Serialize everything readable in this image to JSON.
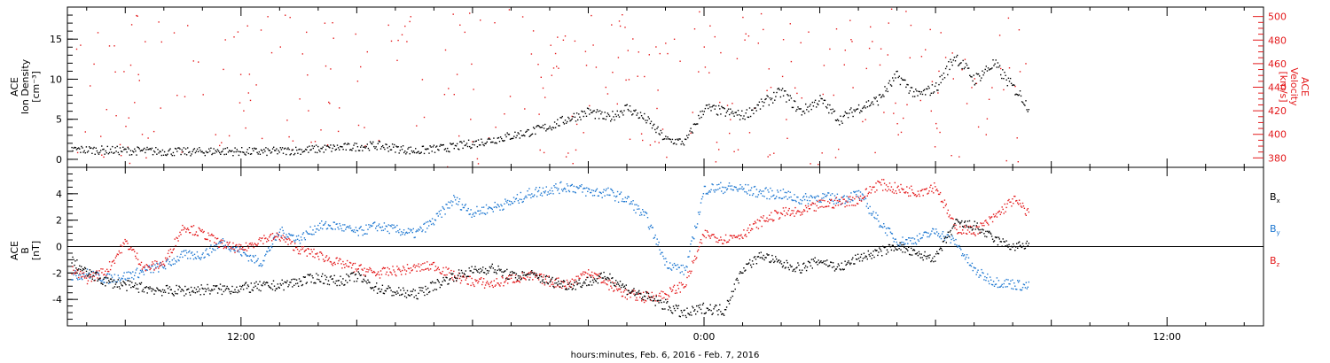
{
  "colors": {
    "black": "#000000",
    "red": "#e41a1c",
    "blue": "#1f78d1",
    "frame": "#000000"
  },
  "footer": {
    "xlabel": "hours:minutes, Feb.  6, 2016 - Feb.  7, 2016"
  },
  "chart_data": [
    {
      "type": "scatter",
      "panel": "top",
      "ylabel_lines": [
        "ACE",
        "Ion Density",
        "[cm⁻³]"
      ],
      "y2label_lines": [
        "ACE",
        "Velocity",
        "[km/s]"
      ],
      "x_tick_labels": [
        "12:00",
        "0:00",
        "12:00"
      ],
      "x_ticks_hours": [
        12,
        24,
        36
      ],
      "xlim_hours": [
        7.5,
        38.5
      ],
      "ylim": [
        -1,
        19
      ],
      "yticks": [
        0,
        5,
        10,
        15
      ],
      "y2lim": [
        372,
        508
      ],
      "y2ticks": [
        380,
        400,
        420,
        440,
        460,
        480,
        500
      ],
      "grid": false,
      "series": [
        {
          "axis": "left",
          "color": "black",
          "x_hours": [
            7.6,
            8.5,
            9.5,
            10.5,
            11.5,
            12.5,
            13.5,
            14.5,
            15.5,
            16.5,
            17.5,
            18.5,
            19.0,
            19.5,
            20.0,
            20.5,
            21.0,
            21.5,
            22.0,
            22.5,
            23.0,
            23.5,
            24.0,
            24.5,
            25.0,
            25.5,
            26.0,
            26.5,
            27.0,
            27.5,
            28.0,
            28.5,
            29.0,
            29.5,
            30.0,
            30.5,
            31.0,
            31.5,
            32.0,
            32.2,
            32.4
          ],
          "values": [
            1.3,
            1.2,
            1.1,
            1.0,
            1.1,
            1.0,
            1.2,
            1.5,
            1.8,
            1.1,
            1.6,
            2.5,
            3.0,
            3.5,
            4.2,
            5.2,
            6.0,
            5.2,
            6.5,
            5.0,
            2.5,
            2.2,
            6.5,
            6.0,
            5.5,
            7.0,
            8.5,
            6.0,
            7.5,
            5.0,
            6.5,
            7.5,
            10.5,
            8.0,
            9.0,
            13.0,
            10.0,
            12.0,
            9.0,
            8.0,
            6.5
          ]
        },
        {
          "axis": "right",
          "color": "red",
          "x_hours": [
            7.6,
            8.0,
            8.5,
            9.0,
            9.5,
            10.0,
            10.5,
            11.0,
            11.5,
            12.0,
            12.5,
            13.0,
            13.5,
            14.0,
            14.5,
            15.0,
            15.5,
            16.0,
            16.5,
            17.0,
            17.5,
            18.0,
            18.5,
            19.0,
            19.5,
            20.0,
            20.5,
            21.0,
            21.5,
            22.0,
            22.5,
            23.0,
            23.5,
            24.0,
            24.5,
            25.0,
            25.5,
            26.0,
            26.5,
            27.0,
            27.5,
            28.0,
            28.5,
            29.0,
            29.5,
            30.0,
            30.5,
            31.0,
            31.5,
            32.0,
            32.4
          ],
          "values": [
            460,
            456,
            452,
            447,
            443,
            440,
            437,
            435,
            432,
            428,
            425,
            432,
            427,
            430,
            428,
            431,
            437,
            443,
            447,
            446,
            448,
            441,
            437,
            433,
            437,
            430,
            425,
            428,
            421,
            420,
            423,
            419,
            412,
            407,
            408,
            414,
            418,
            423,
            413,
            406,
            413,
            408,
            405,
            404,
            400,
            400,
            404,
            401,
            398,
            396,
            400
          ]
        }
      ]
    },
    {
      "type": "scatter",
      "panel": "bottom",
      "ylabel_lines": [
        "ACE",
        "B",
        "[nT]"
      ],
      "legend_position": "right",
      "x_tick_labels": [
        "12:00",
        "0:00",
        "12:00"
      ],
      "x_ticks_hours": [
        12,
        24,
        36
      ],
      "xlim_hours": [
        7.5,
        38.5
      ],
      "ylim": [
        -6,
        6
      ],
      "yticks": [
        -4,
        -2,
        0,
        2,
        4
      ],
      "zero_line": true,
      "grid": false,
      "series": [
        {
          "name": "B",
          "sub": "x",
          "color": "black",
          "x_hours": [
            7.6,
            8.0,
            8.5,
            9.0,
            9.5,
            10.0,
            10.5,
            11.0,
            11.5,
            12.0,
            12.5,
            13.0,
            13.5,
            14.0,
            14.5,
            15.0,
            15.5,
            16.0,
            16.5,
            17.0,
            17.5,
            18.0,
            18.5,
            19.0,
            19.5,
            20.0,
            20.5,
            21.0,
            21.5,
            22.0,
            22.5,
            23.0,
            23.5,
            24.0,
            24.5,
            25.0,
            25.5,
            26.0,
            26.5,
            27.0,
            27.5,
            28.0,
            28.5,
            29.0,
            29.5,
            30.0,
            30.5,
            31.0,
            31.5,
            32.0,
            32.4
          ],
          "values": [
            -1.0,
            -2.0,
            -2.6,
            -2.9,
            -3.1,
            -3.3,
            -3.3,
            -3.2,
            -3.2,
            -3.1,
            -3.0,
            -2.9,
            -2.6,
            -2.3,
            -2.6,
            -2.2,
            -3.1,
            -3.4,
            -3.6,
            -2.9,
            -2.2,
            -1.8,
            -1.6,
            -2.2,
            -2.1,
            -2.6,
            -2.9,
            -2.6,
            -2.2,
            -3.2,
            -3.8,
            -4.4,
            -5.1,
            -4.6,
            -4.8,
            -1.6,
            -0.6,
            -1.3,
            -1.6,
            -1.0,
            -1.6,
            -0.8,
            -0.4,
            0.1,
            -0.6,
            -0.8,
            1.8,
            1.6,
            0.6,
            0.0,
            0.2
          ]
        },
        {
          "name": "B",
          "sub": "y",
          "color": "blue",
          "x_hours": [
            7.6,
            8.0,
            8.5,
            9.0,
            9.5,
            10.0,
            10.5,
            11.0,
            11.5,
            12.0,
            12.5,
            13.0,
            13.5,
            14.0,
            14.5,
            15.0,
            15.5,
            16.0,
            16.5,
            17.0,
            17.5,
            18.0,
            18.5,
            19.0,
            19.5,
            20.0,
            20.5,
            21.0,
            21.5,
            22.0,
            22.5,
            23.0,
            23.5,
            24.0,
            24.5,
            25.0,
            25.5,
            26.0,
            26.5,
            27.0,
            27.5,
            28.0,
            28.5,
            29.0,
            29.5,
            30.0,
            30.5,
            31.0,
            31.5,
            32.0,
            32.4
          ],
          "values": [
            -2.2,
            -2.0,
            -2.4,
            -2.2,
            -1.8,
            -1.4,
            -0.6,
            -0.6,
            0.4,
            -0.4,
            -1.2,
            1.2,
            0.6,
            1.6,
            1.6,
            1.1,
            1.6,
            1.3,
            1.0,
            2.0,
            3.6,
            2.6,
            3.0,
            3.4,
            4.1,
            4.4,
            4.6,
            4.2,
            4.1,
            3.6,
            2.2,
            -1.2,
            -1.8,
            4.4,
            4.5,
            4.4,
            4.1,
            4.0,
            3.6,
            3.8,
            3.6,
            4.0,
            2.0,
            0.4,
            0.6,
            1.2,
            0.4,
            -1.8,
            -2.6,
            -2.8,
            -3.0
          ]
        },
        {
          "name": "B",
          "sub": "z",
          "color": "red",
          "x_hours": [
            7.6,
            8.0,
            8.5,
            9.0,
            9.5,
            10.0,
            10.5,
            11.0,
            11.5,
            12.0,
            12.5,
            13.0,
            13.5,
            14.0,
            14.5,
            15.0,
            15.5,
            16.0,
            16.5,
            17.0,
            17.5,
            18.0,
            18.5,
            19.0,
            19.5,
            20.0,
            20.5,
            21.0,
            21.5,
            22.0,
            22.5,
            23.0,
            23.5,
            24.0,
            24.5,
            25.0,
            25.5,
            26.0,
            26.5,
            27.0,
            27.5,
            28.0,
            28.5,
            29.0,
            29.5,
            30.0,
            30.5,
            31.0,
            31.5,
            32.0,
            32.4
          ],
          "values": [
            -1.8,
            -2.4,
            -1.8,
            0.4,
            -1.6,
            -1.2,
            1.6,
            1.0,
            0.2,
            -0.2,
            0.6,
            0.8,
            -0.2,
            -0.6,
            -1.2,
            -1.6,
            -2.0,
            -1.8,
            -1.6,
            -1.4,
            -2.2,
            -2.6,
            -2.8,
            -2.4,
            -2.2,
            -2.6,
            -2.8,
            -1.8,
            -2.8,
            -3.6,
            -3.8,
            -3.6,
            -2.8,
            1.0,
            0.6,
            1.0,
            2.0,
            2.6,
            2.6,
            3.2,
            3.4,
            3.6,
            4.8,
            4.4,
            4.2,
            4.6,
            1.4,
            1.2,
            2.2,
            3.6,
            2.6
          ]
        }
      ]
    }
  ]
}
